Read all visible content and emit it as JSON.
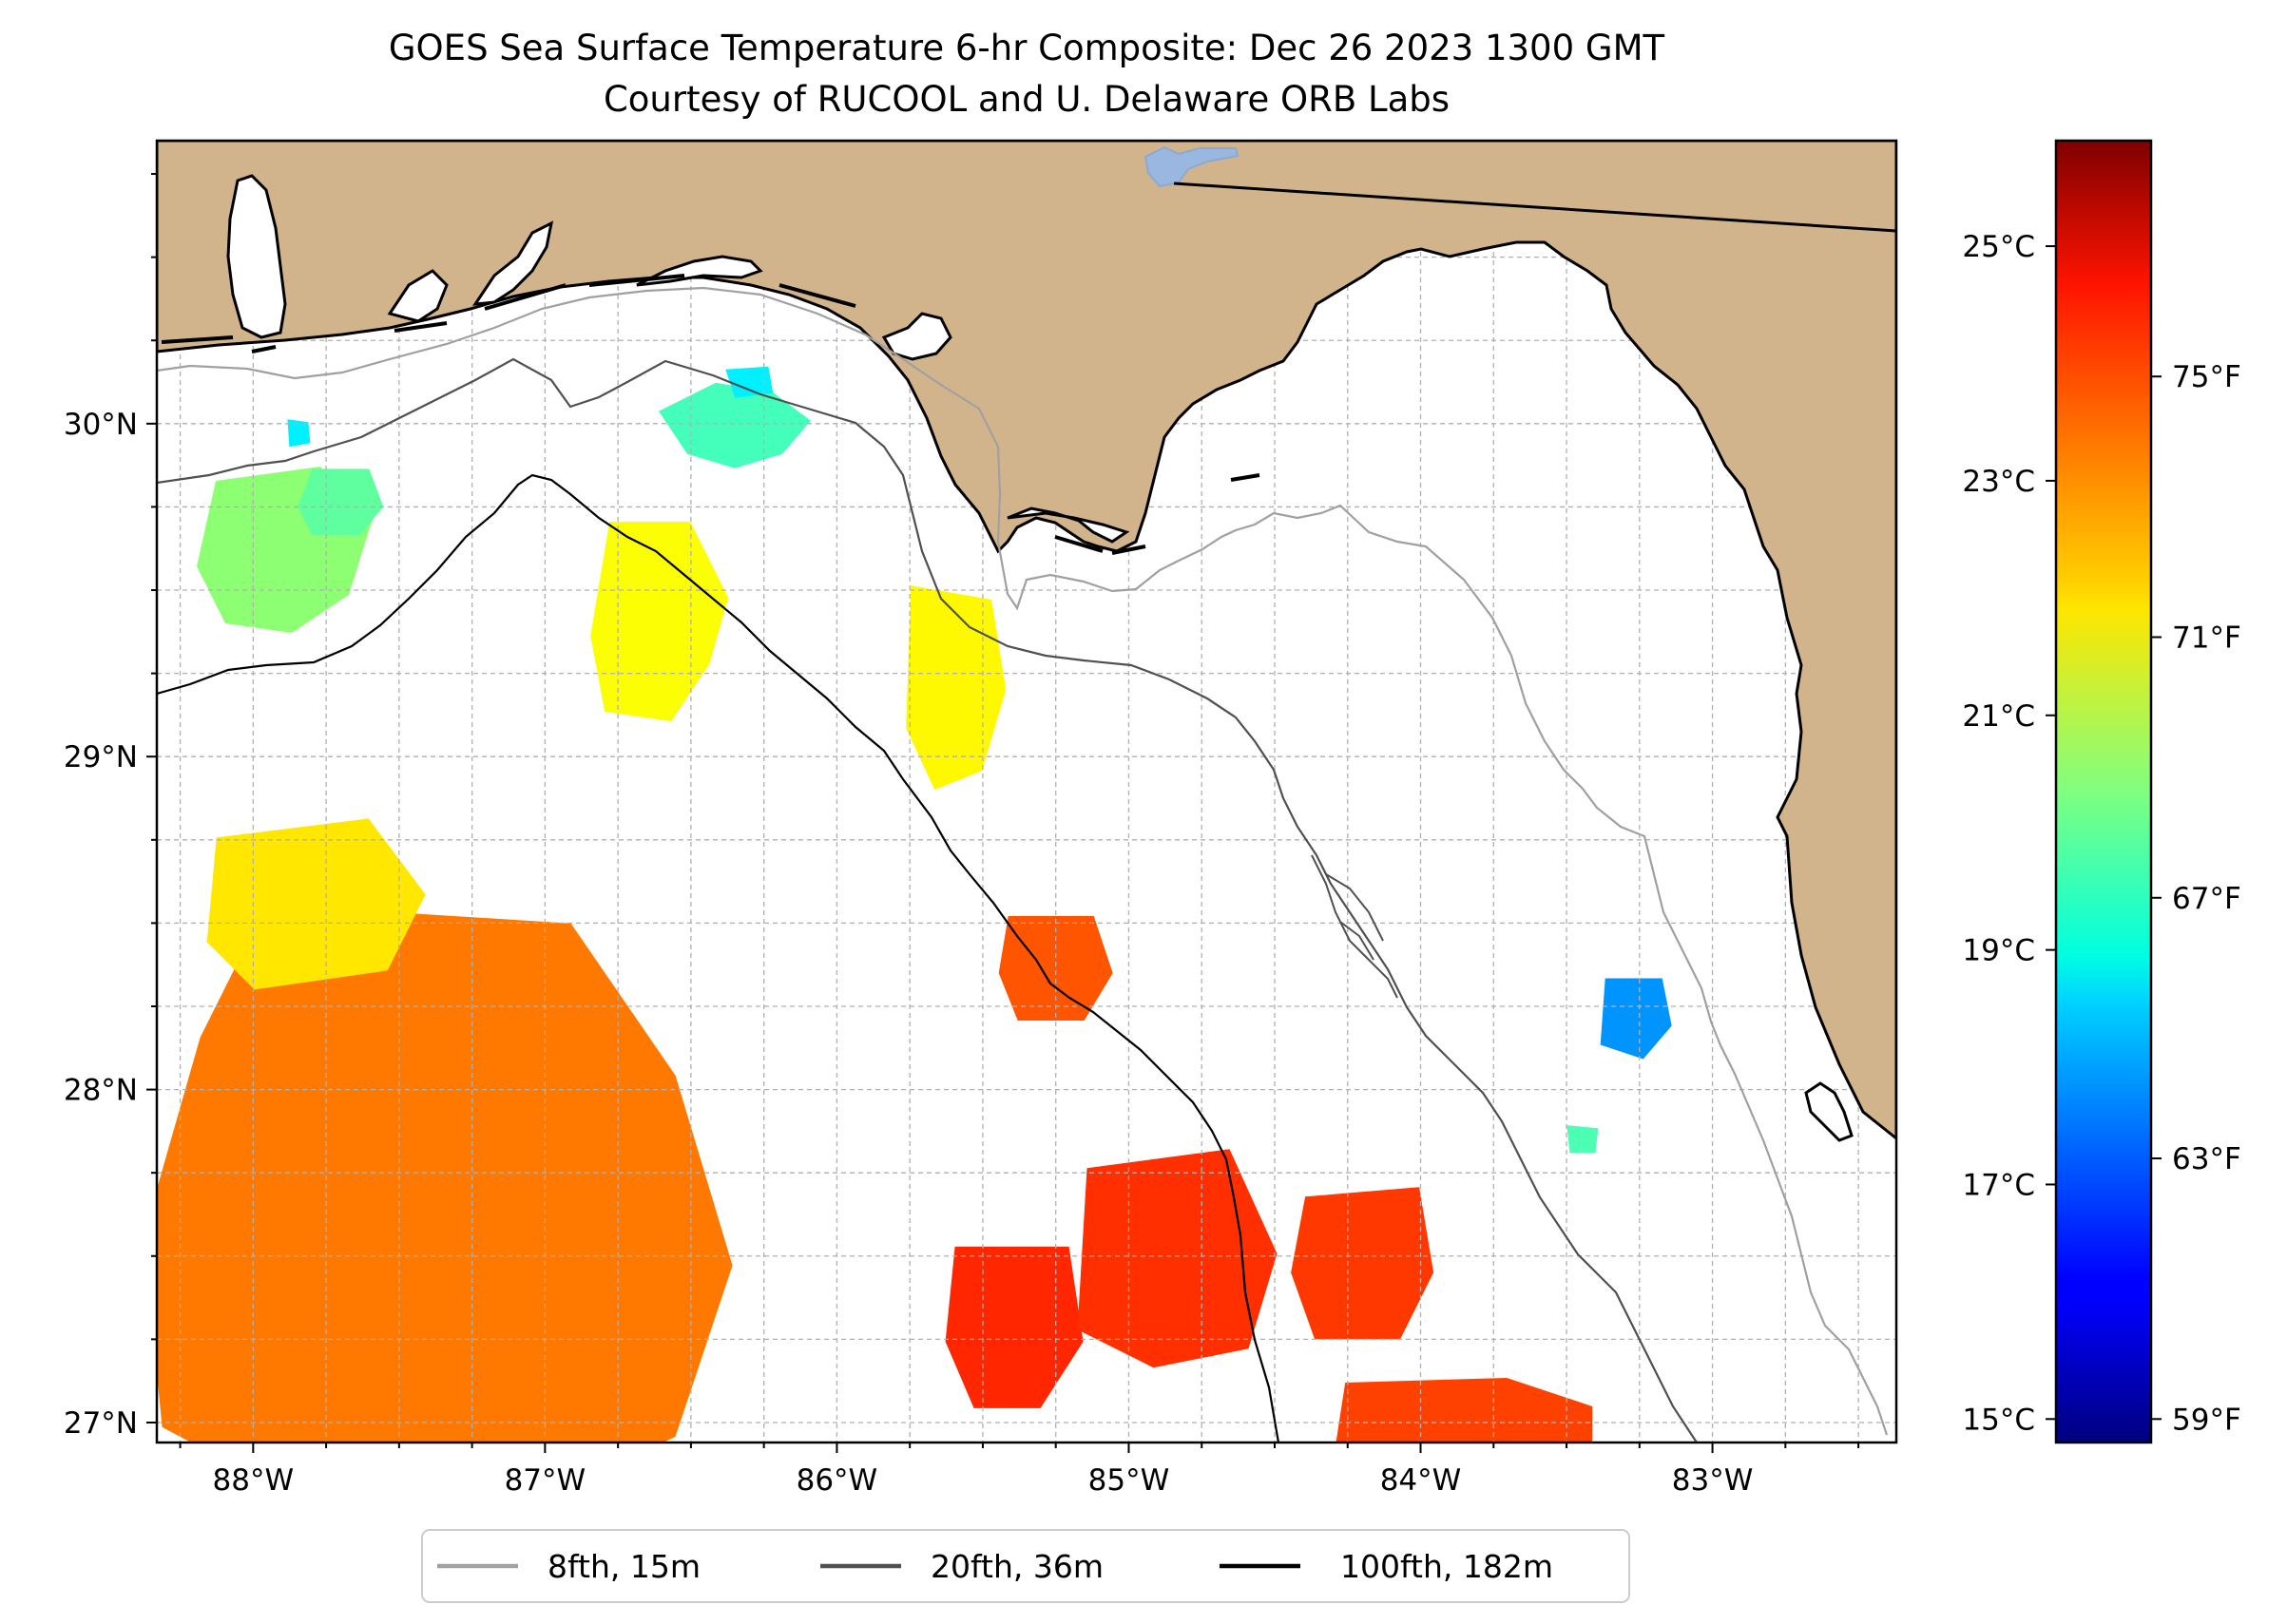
{
  "title": {
    "line1": "GOES Sea Surface Temperature 6-hr Composite: Dec 26 2023 1300 GMT",
    "line2": "Courtesy of RUCOOL and U. Delaware ORB Labs"
  },
  "map": {
    "lon_range": [
      -88.33,
      -82.37
    ],
    "lat_range": [
      26.94,
      30.85
    ],
    "lon_ticks": [
      {
        "value": -88,
        "label": "88°W"
      },
      {
        "value": -87,
        "label": "87°W"
      },
      {
        "value": -86,
        "label": "86°W"
      },
      {
        "value": -85,
        "label": "85°W"
      },
      {
        "value": -84,
        "label": "84°W"
      },
      {
        "value": -83,
        "label": "83°W"
      }
    ],
    "lat_ticks": [
      {
        "value": 30,
        "label": "30°N"
      },
      {
        "value": 29,
        "label": "29°N"
      },
      {
        "value": 28,
        "label": "28°N"
      },
      {
        "value": 27,
        "label": "27°N"
      }
    ],
    "land_color": "#d2b48c",
    "water_color": "#ffffff",
    "grid_color": "#b0b0b0"
  },
  "colorbar": {
    "celsius_range": [
      14.8,
      25.9
    ],
    "celsius_ticks": [
      {
        "value": 25,
        "label": "25°C"
      },
      {
        "value": 23,
        "label": "23°C"
      },
      {
        "value": 21,
        "label": "21°C"
      },
      {
        "value": 19,
        "label": "19°C"
      },
      {
        "value": 17,
        "label": "17°C"
      },
      {
        "value": 15,
        "label": "15°C"
      }
    ],
    "fahrenheit_ticks": [
      {
        "value": 75,
        "label": "75°F"
      },
      {
        "value": 71,
        "label": "71°F"
      },
      {
        "value": 67,
        "label": "67°F"
      },
      {
        "value": 63,
        "label": "63°F"
      },
      {
        "value": 59,
        "label": "59°F"
      }
    ],
    "colormap": "jet"
  },
  "legend": {
    "items": [
      {
        "label": "8fth, 15m",
        "color": "#a0a0a0"
      },
      {
        "label": "20fth, 36m",
        "color": "#505050"
      },
      {
        "label": "100fth, 182m",
        "color": "#000000"
      }
    ]
  },
  "sst_patches": [
    {
      "name": "sst-patch-nw-coast",
      "lon": -87.9,
      "lat": 29.6,
      "temp_c": 20.5
    },
    {
      "name": "sst-patch-nw-inner",
      "lon": -87.7,
      "lat": 29.75,
      "temp_c": 20.0
    },
    {
      "name": "sst-patch-cyan-nw",
      "lon": -87.85,
      "lat": 29.97,
      "temp_c": 18.8
    },
    {
      "name": "sst-patch-pensacola-shelf",
      "lon": -86.35,
      "lat": 29.98,
      "temp_c": 19.7
    },
    {
      "name": "sst-patch-cyan-north",
      "lon": -86.3,
      "lat": 30.12,
      "temp_c": 18.8
    },
    {
      "name": "sst-patch-mid-yellow",
      "lon": -86.6,
      "lat": 29.42,
      "temp_c": 21.7
    },
    {
      "name": "sst-patch-yellow-east",
      "lon": -85.6,
      "lat": 29.2,
      "temp_c": 21.8
    },
    {
      "name": "sst-patch-sw-large",
      "lon": -87.4,
      "lat": 27.7,
      "temp_c": 23.2
    },
    {
      "name": "sst-patch-sw-yellow",
      "lon": -87.8,
      "lat": 28.5,
      "temp_c": 22.0
    },
    {
      "name": "sst-patch-orange-85w",
      "lon": -85.25,
      "lat": 28.35,
      "temp_c": 23.6
    },
    {
      "name": "sst-patch-orange-south-1",
      "lon": -85.4,
      "lat": 27.3,
      "temp_c": 24.1
    },
    {
      "name": "sst-patch-orange-south-2",
      "lon": -84.85,
      "lat": 27.45,
      "temp_c": 24.0
    },
    {
      "name": "sst-patch-orange-south-3",
      "lon": -84.2,
      "lat": 27.45,
      "temp_c": 23.9
    },
    {
      "name": "sst-patch-orange-bottom",
      "lon": -83.9,
      "lat": 27.02,
      "temp_c": 23.8
    },
    {
      "name": "sst-patch-blue-east",
      "lon": -83.27,
      "lat": 28.22,
      "temp_c": 17.8
    },
    {
      "name": "sst-patch-green-east",
      "lon": -83.45,
      "lat": 27.85,
      "temp_c": 19.8
    }
  ]
}
